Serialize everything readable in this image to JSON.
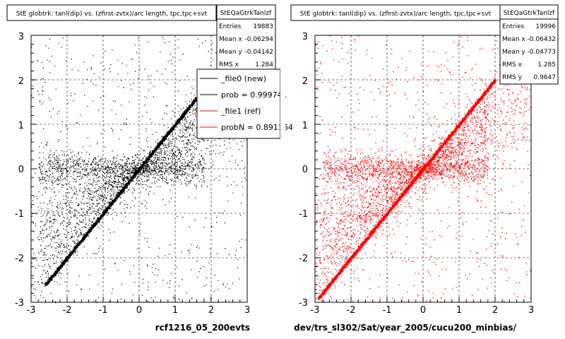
{
  "chart_data": [
    {
      "type": "scatter",
      "title": "StE globtrk: tanl(dip) vs. (zfirst-zvtx)/arc length, tpc,tpc+svt",
      "xlabel": "rcf1216_05_200evts",
      "ylabel": "",
      "xlim": [
        -3,
        3
      ],
      "ylim": [
        -3,
        3
      ],
      "xticks": [
        "-3",
        "-2",
        "-1",
        "0",
        "1",
        "2",
        "3"
      ],
      "yticks": [
        "-3",
        "-2",
        "-1",
        "0",
        "1",
        "2",
        "3"
      ],
      "grid": true,
      "marker_color": "#000000",
      "stats": {
        "name": "StEQaGtrkTanlzf",
        "rows": [
          {
            "label": "Entries",
            "value": "19883"
          },
          {
            "label": "Mean x",
            "value": "-0.06294"
          },
          {
            "label": "Mean y",
            "value": "-0.04142"
          },
          {
            "label": "RMS x",
            "value": "1.284"
          }
        ]
      },
      "legend": {
        "placement": "top-right",
        "entries": [
          {
            "label": "_file0 (new)",
            "color": "#000000"
          },
          {
            "label": "prob = 0.999741",
            "color": "#000000"
          },
          {
            "label": "_file1 (ref)",
            "color": "#ff0000"
          },
          {
            "label": "probN = 0.891164",
            "color": "#ff0000"
          }
        ]
      },
      "series": [
        {
          "component": "diagonal band",
          "relation": "y = x",
          "x_range": [
            -2.6,
            1.6
          ],
          "width": 0.08,
          "entries_share": 0.55
        },
        {
          "component": "horizontal band",
          "relation": "y = 0",
          "x_range": [
            -2.8,
            1.8
          ],
          "width": 0.5,
          "entries_share": 0.25
        },
        {
          "component": "diffuse background",
          "x_range": [
            -3,
            3
          ],
          "y_range": [
            -3,
            3
          ],
          "entries_share": 0.2
        }
      ]
    },
    {
      "type": "scatter",
      "title": "StE globtrk: tanl(dip) vs. (zfirst-zvtx)/arc length, tpc,tpc+svt",
      "xlabel": "dev/trs_sl302/Sat/year_2005/cucu200_minbias/",
      "ylabel": "",
      "xlim": [
        -3,
        3
      ],
      "ylim": [
        -3,
        3
      ],
      "xticks": [
        "-3",
        "-2",
        "-1",
        "0",
        "1",
        "2",
        "3"
      ],
      "yticks": [
        "-3",
        "-2",
        "-1",
        "0",
        "1",
        "2",
        "3"
      ],
      "grid": true,
      "marker_color": "#ff0000",
      "stats": {
        "name": "StEQaGtrkTanlzf",
        "rows": [
          {
            "label": "Entries",
            "value": "19996"
          },
          {
            "label": "Mean x",
            "value": "-0.06432"
          },
          {
            "label": "Mean y",
            "value": "-0.04773"
          },
          {
            "label": "RMS x",
            "value": "1.285"
          },
          {
            "label": "RMS y",
            "value": "0.9647"
          }
        ]
      },
      "series": [
        {
          "component": "diagonal band",
          "relation": "y = x",
          "x_range": [
            -2.9,
            2.0
          ],
          "width": 0.08,
          "entries_share": 0.55
        },
        {
          "component": "horizontal band",
          "relation": "y = 0",
          "x_range": [
            -2.8,
            1.8
          ],
          "width": 0.5,
          "entries_share": 0.25
        },
        {
          "component": "diffuse background",
          "x_range": [
            -3,
            3
          ],
          "y_range": [
            -3,
            3
          ],
          "entries_share": 0.2
        }
      ]
    }
  ]
}
